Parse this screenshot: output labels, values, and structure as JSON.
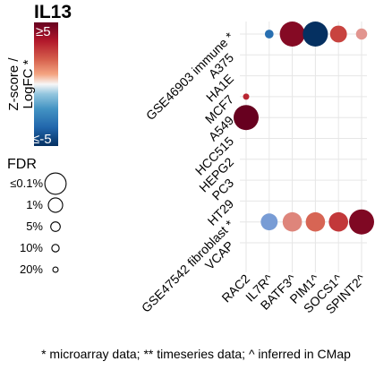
{
  "chart_data": {
    "type": "bubble-matrix",
    "title": "IL13",
    "colorbar": {
      "label_line1": "Z-score /",
      "label_line2": "LogFC *",
      "max_label": "≥5",
      "min_label": "≤-5",
      "range": [
        -5,
        5
      ],
      "colors": {
        "low": "#053061",
        "mid": "#f7f7f7",
        "high": "#67001f"
      }
    },
    "size_legend": {
      "title": "FDR",
      "entries": [
        {
          "label": "≤0.1%",
          "fdr": 0.001
        },
        {
          "label": "1%",
          "fdr": 0.01
        },
        {
          "label": "5%",
          "fdr": 0.05
        },
        {
          "label": "10%",
          "fdr": 0.1
        },
        {
          "label": "20%",
          "fdr": 0.2
        }
      ]
    },
    "rows": [
      "GSE46903 immune *",
      "A375",
      "HA1E",
      "MCF7",
      "A549",
      "HCC515",
      "HEPG2",
      "PC3",
      "HT29",
      "GSE47542 fibroblast *",
      "VCAP"
    ],
    "columns": [
      "RAC2",
      "IL7R^",
      "BATF3^",
      "PIM1^",
      "SOCS1^",
      "SPINT2^"
    ],
    "points": [
      {
        "row": "GSE46903 immune *",
        "col": "IL7R^",
        "value": -3.5,
        "fdr": 0.1
      },
      {
        "row": "GSE46903 immune *",
        "col": "BATF3^",
        "value": 4.5,
        "fdr": 0.001
      },
      {
        "row": "GSE46903 immune *",
        "col": "PIM1^",
        "value": -5,
        "fdr": 0.001
      },
      {
        "row": "GSE46903 immune *",
        "col": "SOCS1^",
        "value": 3.0,
        "fdr": 0.01
      },
      {
        "row": "GSE46903 immune *",
        "col": "SPINT2^",
        "value": 1.5,
        "fdr": 0.05
      },
      {
        "row": "MCF7",
        "col": "RAC2",
        "value": 3.5,
        "fdr": 0.2
      },
      {
        "row": "A549",
        "col": "RAC2",
        "value": 5,
        "fdr": 0.001
      },
      {
        "row": "GSE47542 fibroblast *",
        "col": "IL7R^",
        "value": -1.5,
        "fdr": 0.01
      },
      {
        "row": "GSE47542 fibroblast *",
        "col": "BATF3^",
        "value": 1.8,
        "fdr": 0.005
      },
      {
        "row": "GSE47542 fibroblast *",
        "col": "PIM1^",
        "value": 2.4,
        "fdr": 0.005
      },
      {
        "row": "GSE47542 fibroblast *",
        "col": "SOCS1^",
        "value": 3.2,
        "fdr": 0.005
      },
      {
        "row": "GSE47542 fibroblast *",
        "col": "SPINT2^",
        "value": 4.6,
        "fdr": 0.001
      }
    ],
    "grid": true,
    "caption": "* microarray data; ** timeseries data; ^ inferred in CMap"
  }
}
